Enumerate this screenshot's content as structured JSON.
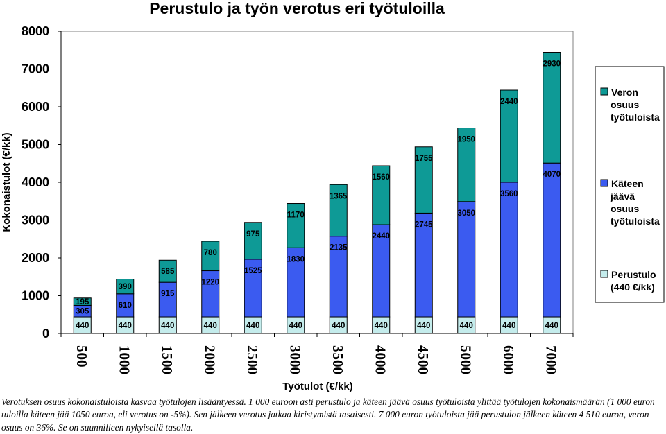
{
  "chart_data": {
    "type": "bar",
    "stacked": true,
    "title": "Perustulo ja työn verotus eri työtuloilla",
    "xlabel": "Työtulot (€/kk)",
    "ylabel": "Kokonaistulot (€/kk)",
    "ylim": [
      0,
      8000
    ],
    "yticks": [
      "0",
      "1000",
      "2000",
      "3000",
      "4000",
      "5000",
      "6000",
      "7000",
      "8000"
    ],
    "categories": [
      "500",
      "1000",
      "1500",
      "2000",
      "2500",
      "3000",
      "3500",
      "4000",
      "4500",
      "5000",
      "6000",
      "7000"
    ],
    "grid": false,
    "legend_position": "right",
    "series": [
      {
        "name": "Perustulo (440 €/kk)",
        "color": "#c4ecec",
        "values": [
          440,
          440,
          440,
          440,
          440,
          440,
          440,
          440,
          440,
          440,
          440,
          440
        ]
      },
      {
        "name": "Käteen jäävä osuus työtuloista",
        "color": "#3b5bf0",
        "values": [
          305,
          610,
          915,
          1220,
          1525,
          1830,
          2135,
          2440,
          2745,
          3050,
          3560,
          4070
        ]
      },
      {
        "name": "Veron osuus työtuloista",
        "color": "#0e9a96",
        "values": [
          195,
          390,
          585,
          780,
          975,
          1170,
          1365,
          1560,
          1755,
          1950,
          2440,
          2930
        ]
      }
    ],
    "legend": [
      {
        "lines": [
          "Veron",
          "osuus",
          "työtuloista"
        ],
        "color": "#0e9a96"
      },
      {
        "lines": [
          "Käteen",
          "jäävä",
          "osuus",
          "työtuloista"
        ],
        "color": "#3b5bf0"
      },
      {
        "lines": [
          "Perustulo",
          "(440 €/kk)"
        ],
        "color": "#c4ecec"
      }
    ]
  },
  "caption": "Verotuksen osuus kokonaistuloista kasvaa työtulojen lisääntyessä. 1 000 euroon asti perustulo ja käteen jäävä osuus työtuloista ylittää työtulojen kokonaismäärän (1 000 euron tuloilla käteen jää 1050 euroa, eli verotus on -5%). Sen jälkeen verotus jatkaa kiristymistä tasaisesti. 7 000 euron työtuloista jää perustulon jälkeen käteen 4 510 euroa, veron osuus on 36%. Se on suunnilleen nykyisellä tasolla."
}
